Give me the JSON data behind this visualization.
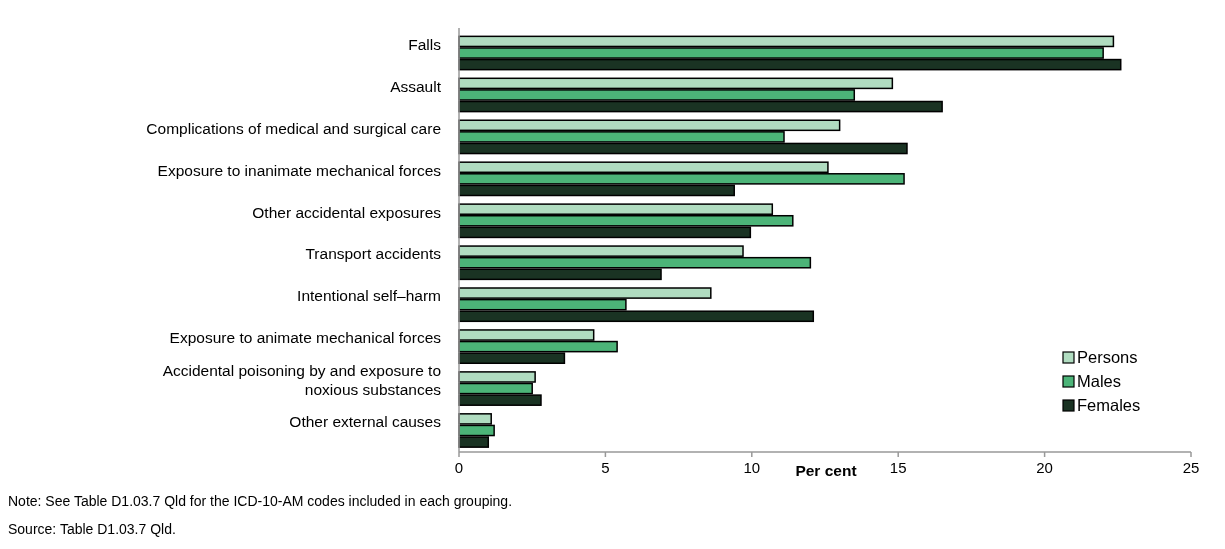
{
  "chart_data": {
    "type": "bar",
    "orientation": "horizontal",
    "categories": [
      "Falls",
      "Assault",
      "Complications of medical and surgical care",
      "Exposure to inanimate mechanical forces",
      "Other accidental exposures",
      "Transport accidents",
      "Intentional self–harm",
      "Exposure to animate mechanical forces",
      "Accidental poisoning by and exposure to noxious substances",
      "Other external causes"
    ],
    "series": [
      {
        "name": "Persons",
        "color": "#b0dcc0",
        "values": [
          22.35,
          14.8,
          13.0,
          12.6,
          10.7,
          9.7,
          8.6,
          4.6,
          2.6,
          1.1
        ]
      },
      {
        "name": "Males",
        "color": "#4cb478",
        "values": [
          22.0,
          13.5,
          11.1,
          15.2,
          11.4,
          12.0,
          5.7,
          5.4,
          2.5,
          1.2
        ]
      },
      {
        "name": "Females",
        "color": "#1a3323",
        "values": [
          22.6,
          16.5,
          15.3,
          9.4,
          9.95,
          6.9,
          12.1,
          3.6,
          2.8,
          1.0
        ]
      }
    ],
    "xlabel": "Per cent",
    "xlim": [
      0,
      25
    ],
    "xticks": [
      0,
      5,
      10,
      15,
      20,
      25
    ],
    "legend": "bottom right",
    "grid": false,
    "annotations": [
      "Note: See Table D1.03.7 Qld for the ICD-10-AM codes included in each grouping.",
      "Source: Table D1.03.7 Qld."
    ]
  }
}
